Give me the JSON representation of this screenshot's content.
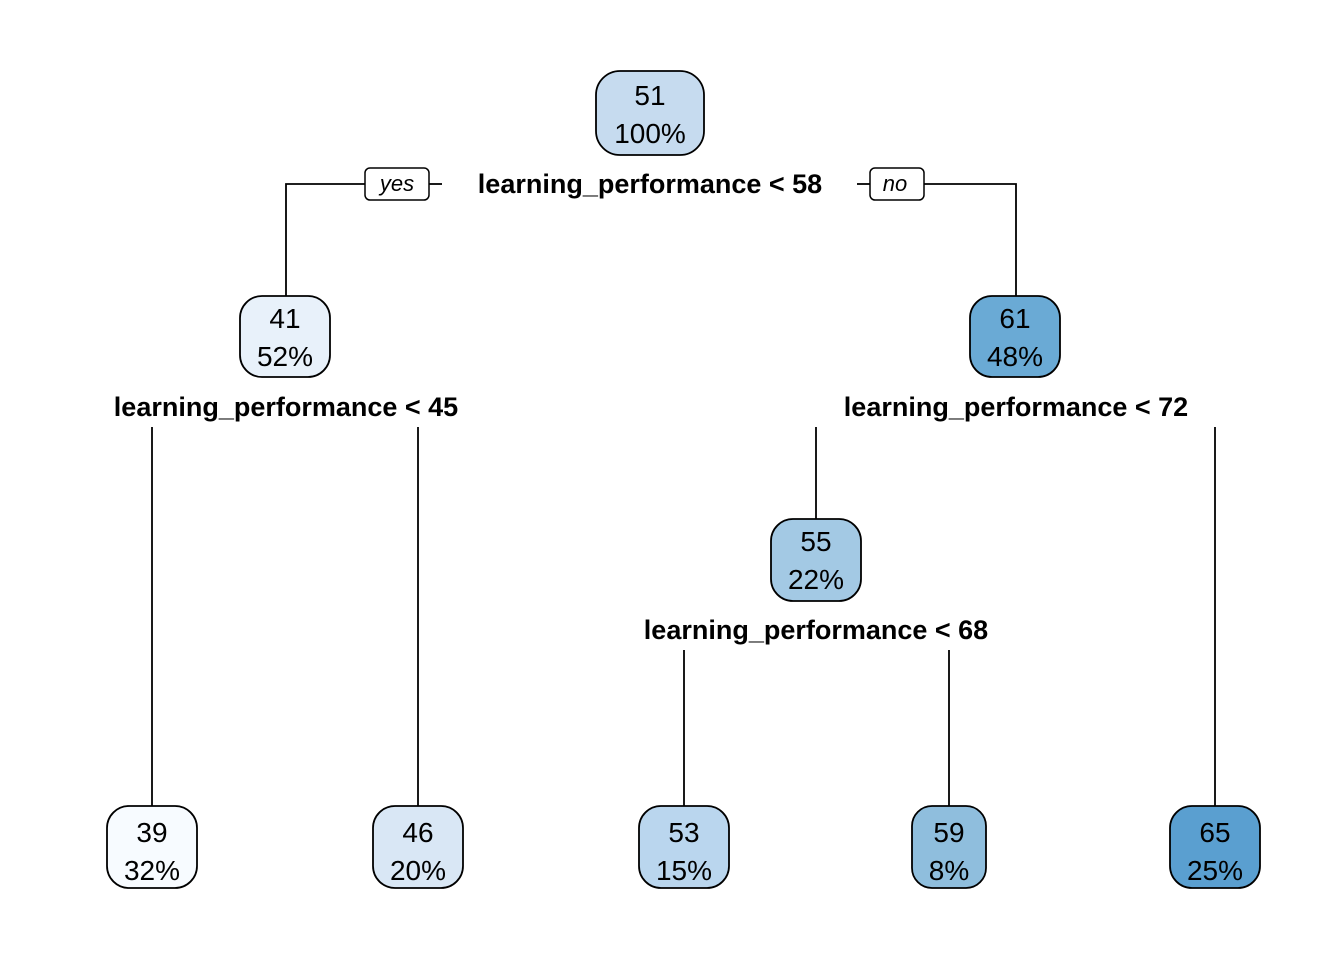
{
  "tree": {
    "nodes": [
      {
        "id": "root",
        "value": "51",
        "percent": "100%",
        "color": "#c6dbef"
      },
      {
        "id": "n2",
        "value": "41",
        "percent": "52%",
        "color": "#e8f1fa"
      },
      {
        "id": "n3",
        "value": "61",
        "percent": "48%",
        "color": "#6aaad5"
      },
      {
        "id": "n4",
        "value": "39",
        "percent": "32%",
        "color": "#f7fbff"
      },
      {
        "id": "n5",
        "value": "46",
        "percent": "20%",
        "color": "#d9e7f5"
      },
      {
        "id": "n6",
        "value": "55",
        "percent": "22%",
        "color": "#a3c9e4"
      },
      {
        "id": "n12",
        "value": "53",
        "percent": "15%",
        "color": "#bad6ee"
      },
      {
        "id": "n13",
        "value": "59",
        "percent": "8%",
        "color": "#8fbedd"
      },
      {
        "id": "n7",
        "value": "65",
        "percent": "25%",
        "color": "#5a9fd0"
      }
    ],
    "splits": [
      {
        "id": "s_root",
        "label": "learning_performance < 58"
      },
      {
        "id": "s_n2",
        "label": "learning_performance < 45"
      },
      {
        "id": "s_n3",
        "label": "learning_performance < 72"
      },
      {
        "id": "s_n6",
        "label": "learning_performance < 68"
      }
    ],
    "branch_labels": {
      "yes": "yes",
      "no": "no"
    }
  }
}
